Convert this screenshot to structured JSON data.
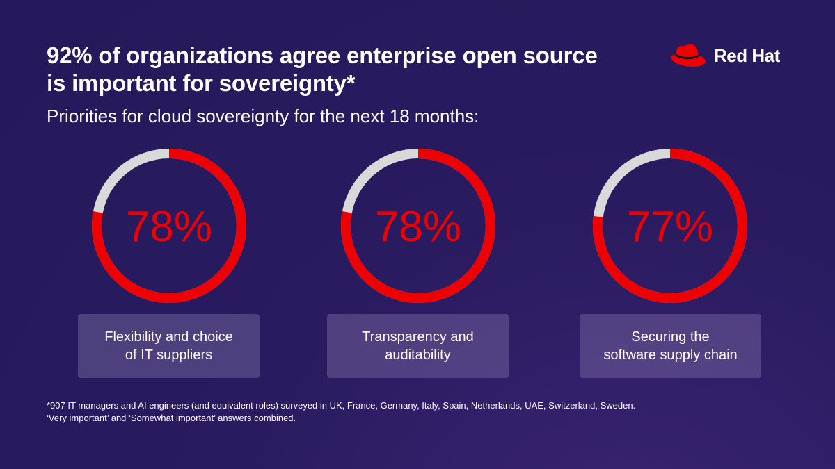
{
  "title": "92% of organizations agree enterprise open source is important for  sovereignty*",
  "subtitle": "Priorities for cloud sovereignty for the next 18 months:",
  "brand": {
    "name": "Red Hat",
    "accent": "#ee0000"
  },
  "chart_data": {
    "type": "pie",
    "title": "Priorities for cloud sovereignty for the next 18 months:",
    "unit": "%",
    "series": [
      {
        "name": "Flexibility and choice of IT suppliers",
        "value": 78,
        "label": "78%"
      },
      {
        "name": "Transparency and auditability",
        "value": 78,
        "label": "78%"
      },
      {
        "name": "Securing the software supply chain",
        "value": 77,
        "label": "77%"
      }
    ],
    "colors": {
      "filled": "#ee0000",
      "remainder": "#d9d9d9"
    }
  },
  "labels": [
    {
      "line1": "Flexibility and choice",
      "line2": "of IT suppliers"
    },
    {
      "line1": "Transparency and",
      "line2": "auditability"
    },
    {
      "line1": "Securing the",
      "line2": "software supply chain"
    }
  ],
  "footnote": {
    "line1": "*907 IT managers and AI engineers (and equivalent roles) surveyed in UK, France, Germany, Italy, Spain, Netherlands, UAE, Switzerland, Sweden.",
    "line2": "‘Very important’ and ‘Somewhat important’ answers combined."
  }
}
